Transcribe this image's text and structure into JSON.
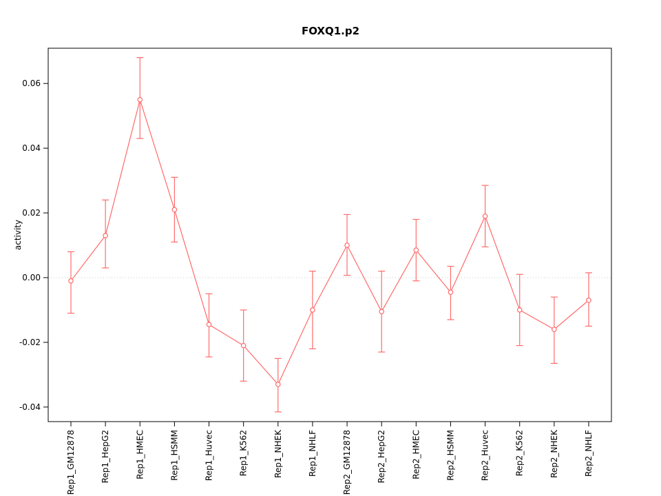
{
  "chart_data": {
    "type": "line",
    "title": "FOXQ1.p2",
    "xlabel": "",
    "ylabel": "activity",
    "ylim": [
      -0.0445,
      0.0709
    ],
    "yticks": [
      -0.04,
      -0.02,
      0.0,
      0.02,
      0.04,
      0.06
    ],
    "grid": false,
    "zero_line": true,
    "zero_line_color": "#c8c8c8",
    "legend_position": "none",
    "point_style": "open-circle",
    "error_bars": true,
    "line_color": "#ff6a6a",
    "axis_color": "#000000",
    "categories": [
      "Rep1_GM12878",
      "Rep1_HepG2",
      "Rep1_HMEC",
      "Rep1_HSMM",
      "Rep1_Huvec",
      "Rep1_K562",
      "Rep1_NHEK",
      "Rep1_NHLF",
      "Rep2_GM12878",
      "Rep2_HepG2",
      "Rep2_HMEC",
      "Rep2_HSMM",
      "Rep2_Huvec",
      "Rep2_K562",
      "Rep2_NHEK",
      "Rep2_NHLF"
    ],
    "values": [
      -0.001,
      0.013,
      0.055,
      0.021,
      -0.0145,
      -0.021,
      -0.033,
      -0.01,
      0.01,
      -0.0105,
      0.0085,
      -0.0045,
      0.019,
      -0.01,
      -0.016,
      -0.007
    ],
    "error_low": [
      -0.011,
      0.003,
      0.043,
      0.011,
      -0.0245,
      -0.032,
      -0.0415,
      -0.022,
      0.0007,
      -0.023,
      -0.001,
      -0.013,
      0.0095,
      -0.021,
      -0.0265,
      -0.015
    ],
    "error_high": [
      0.008,
      0.024,
      0.068,
      0.031,
      -0.005,
      -0.01,
      -0.025,
      0.002,
      0.0195,
      0.002,
      0.018,
      0.0035,
      0.0285,
      0.001,
      -0.006,
      0.0015
    ]
  }
}
